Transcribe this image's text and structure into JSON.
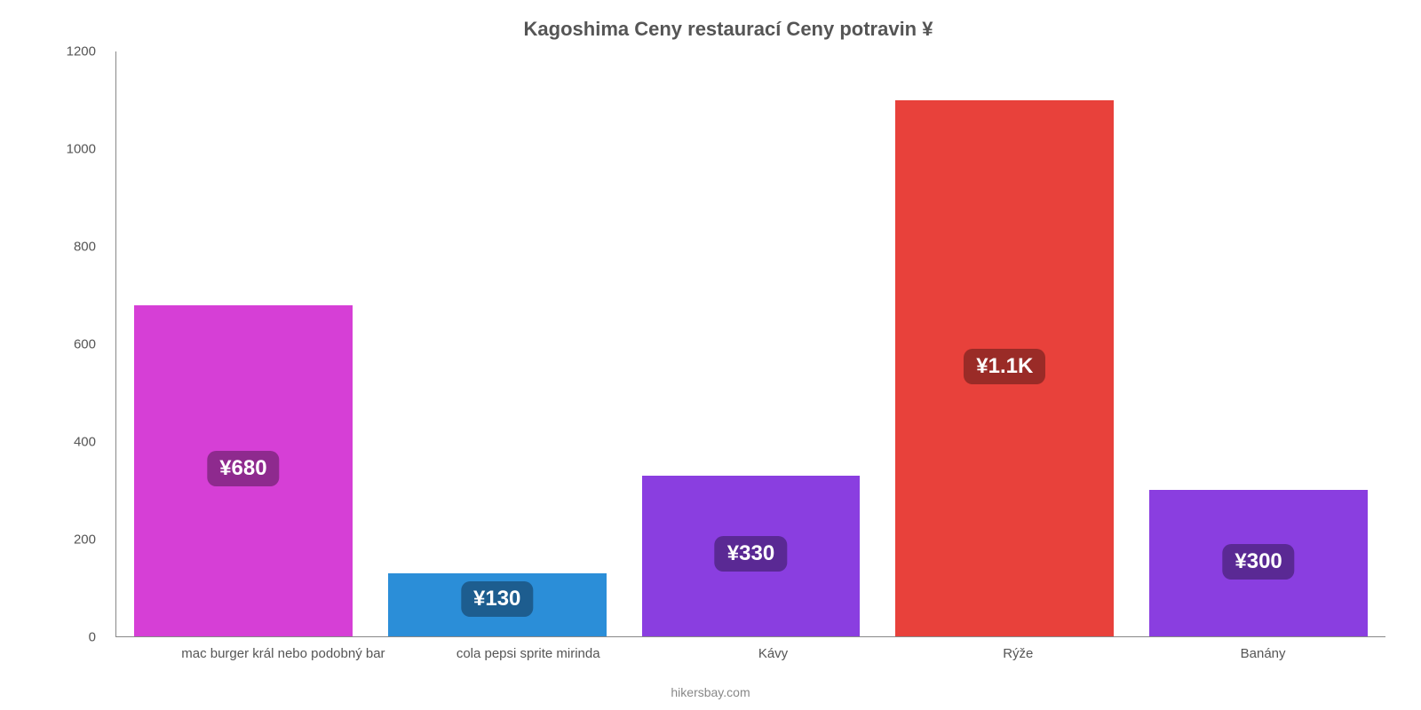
{
  "chart": {
    "type": "bar",
    "title": "Kagoshima Ceny restaurací Ceny potravin ¥",
    "title_fontsize": 22,
    "title_color": "#555555",
    "background_color": "#ffffff",
    "axis_color": "#888888",
    "tick_label_color": "#555555",
    "tick_fontsize": 15,
    "x_label_fontsize": 15,
    "attribution": "hikersbay.com",
    "attribution_color": "#888888",
    "attribution_fontsize": 14,
    "ylim": [
      0,
      1200
    ],
    "ytick_step": 200,
    "yticks": [
      0,
      200,
      400,
      600,
      800,
      1000,
      1200
    ],
    "bar_width_pct": 86,
    "categories": [
      "mac burger král nebo podobný bar",
      "cola pepsi sprite mirinda",
      "Kávy",
      "Rýže",
      "Banány"
    ],
    "values": [
      680,
      130,
      330,
      1100,
      300
    ],
    "value_labels": [
      "¥680",
      "¥130",
      "¥330",
      "¥1.1K",
      "¥300"
    ],
    "bar_colors": [
      "#d63fd6",
      "#2b8ed8",
      "#8a3ee0",
      "#e8413b",
      "#8a3ee0"
    ],
    "badge_colors": [
      "#8e2a8e",
      "#1d5d8f",
      "#5a2994",
      "#9a2b27",
      "#5a2994"
    ],
    "badge_text_color": "#ffffff",
    "badge_fontsize": 24,
    "badge_radius": 10
  }
}
